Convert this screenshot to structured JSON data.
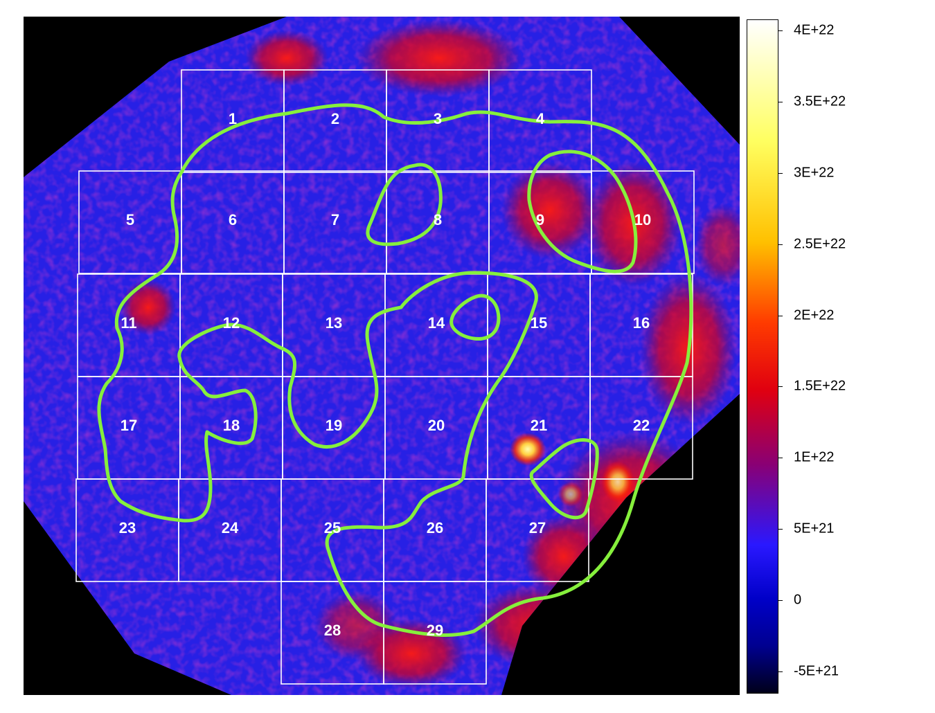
{
  "image": {
    "description_colors": {
      "background_black": "#000000",
      "blue_field": "#2a24ff",
      "red_region": "#d90015",
      "yellow_peak": "#ffe44a",
      "contour_green": "#86f03c",
      "grid_white": "#ffffff"
    }
  },
  "colorbar": {
    "ticks": [
      "4E+22",
      "3.5E+22",
      "3E+22",
      "2.5E+22",
      "2E+22",
      "1.5E+22",
      "1E+22",
      "5E+21",
      "0",
      "-5E+21"
    ]
  },
  "regions": {
    "labels": [
      "1",
      "2",
      "3",
      "4",
      "5",
      "6",
      "7",
      "8",
      "9",
      "10",
      "11",
      "12",
      "13",
      "14",
      "15",
      "16",
      "17",
      "18",
      "19",
      "20",
      "21",
      "22",
      "23",
      "24",
      "25",
      "26",
      "27",
      "28",
      "29"
    ]
  }
}
